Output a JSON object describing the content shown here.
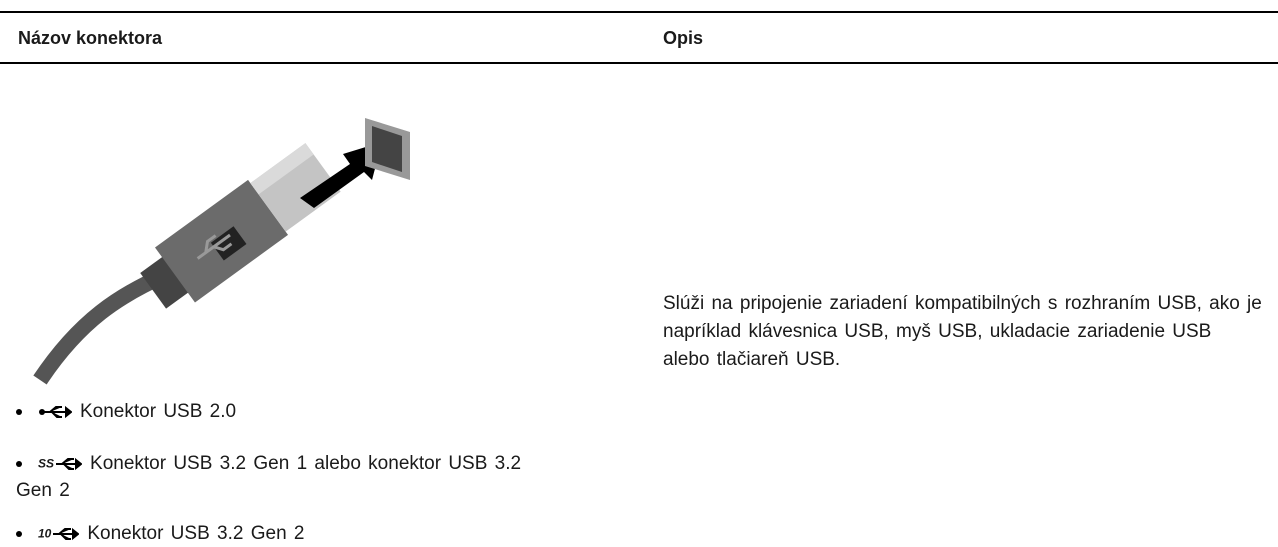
{
  "table": {
    "columns": [
      "Názov konektora",
      "Opis"
    ],
    "rows": [
      {
        "bullets": [
          {
            "text": "Konektor USB 2.0"
          },
          {
            "icon_label": "SS",
            "text": "Konektor USB 3.2 Gen 1 alebo konektor USB 3.2 Gen 2"
          },
          {
            "icon_label": "10",
            "text": "Konektor USB 3.2 Gen 2"
          }
        ],
        "description": "Slúži na pripojenie zariadení kompatibilných s rozhraním USB, ako je napríklad klávesnica USB, myš USB, ukladacie zariadenie USB alebo tlačiareň USB."
      }
    ]
  }
}
